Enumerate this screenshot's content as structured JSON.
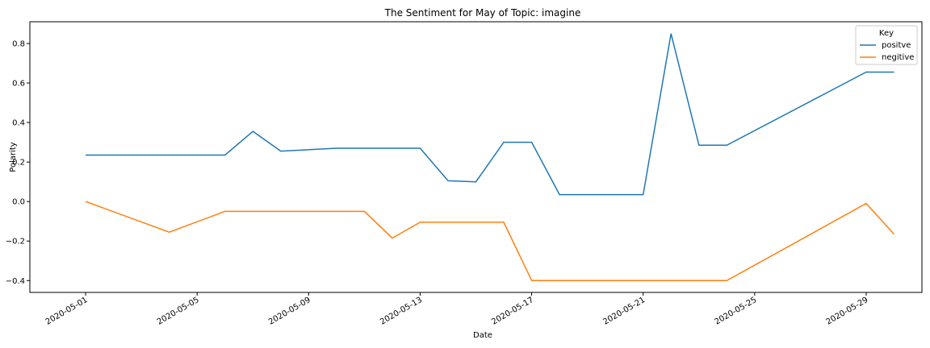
{
  "chart_data": {
    "type": "line",
    "title": "The Sentiment for May of Topic: imagine",
    "xlabel": "Date",
    "ylabel": "Polarity",
    "xlim": [
      "2020-04-29",
      "2020-05-31"
    ],
    "ylim": [
      -0.46,
      0.91
    ],
    "x_ticks": [
      "2020-05-01",
      "2020-05-05",
      "2020-05-09",
      "2020-05-13",
      "2020-05-17",
      "2020-05-21",
      "2020-05-25",
      "2020-05-29"
    ],
    "y_ticks": [
      -0.4,
      -0.2,
      0.0,
      0.2,
      0.4,
      0.6,
      0.8
    ],
    "y_tick_labels": [
      "−0.4",
      "−0.2",
      "0.0",
      "0.2",
      "0.4",
      "0.6",
      "0.8"
    ],
    "grid": false,
    "legend": {
      "title": "Key",
      "position": "top-right"
    },
    "series": [
      {
        "name": "positve",
        "color": "#1f77b4",
        "points": [
          [
            "2020-05-01",
            0.235
          ],
          [
            "2020-05-06",
            0.235
          ],
          [
            "2020-05-07",
            0.355
          ],
          [
            "2020-05-08",
            0.255
          ],
          [
            "2020-05-10",
            0.27
          ],
          [
            "2020-05-13",
            0.27
          ],
          [
            "2020-05-14",
            0.105
          ],
          [
            "2020-05-15",
            0.1
          ],
          [
            "2020-05-16",
            0.3
          ],
          [
            "2020-05-17",
            0.3
          ],
          [
            "2020-05-18",
            0.035
          ],
          [
            "2020-05-21",
            0.035
          ],
          [
            "2020-05-22",
            0.85
          ],
          [
            "2020-05-23",
            0.285
          ],
          [
            "2020-05-24",
            0.285
          ],
          [
            "2020-05-29",
            0.655
          ],
          [
            "2020-05-30",
            0.655
          ]
        ]
      },
      {
        "name": "negitive",
        "color": "#ff7f0e",
        "points": [
          [
            "2020-05-01",
            0.0
          ],
          [
            "2020-05-04",
            -0.155
          ],
          [
            "2020-05-06",
            -0.05
          ],
          [
            "2020-05-11",
            -0.05
          ],
          [
            "2020-05-12",
            -0.185
          ],
          [
            "2020-05-13",
            -0.105
          ],
          [
            "2020-05-16",
            -0.105
          ],
          [
            "2020-05-17",
            -0.4
          ],
          [
            "2020-05-24",
            -0.4
          ],
          [
            "2020-05-29",
            -0.01
          ],
          [
            "2020-05-30",
            -0.165
          ]
        ]
      }
    ]
  }
}
